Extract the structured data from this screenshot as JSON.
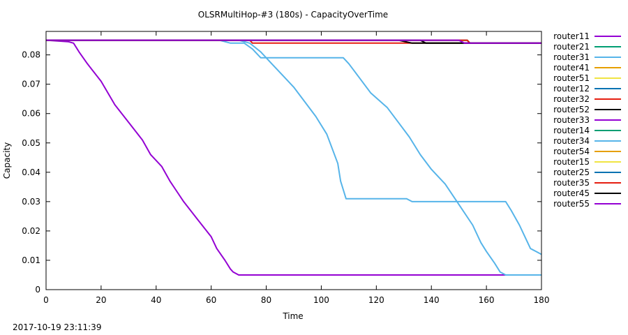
{
  "chart_data": {
    "type": "line",
    "title": "OLSRMultiHop-#3 (180s) - CapacityOverTime",
    "xlabel": "Time",
    "ylabel": "Capacity",
    "xlim": [
      0,
      180
    ],
    "ylim": [
      0,
      0.088
    ],
    "xticks": [
      0,
      20,
      40,
      60,
      80,
      100,
      120,
      140,
      160,
      180
    ],
    "yticks": [
      0,
      0.01,
      0.02,
      0.03,
      0.04,
      0.05,
      0.06,
      0.07,
      0.08
    ],
    "grid": false,
    "legend_position": "right",
    "series": [
      {
        "name": "router11",
        "color": "#9400d3",
        "points": [
          [
            0,
            0.085
          ],
          [
            8,
            0.0845
          ],
          [
            10,
            0.084
          ],
          [
            12,
            0.081
          ],
          [
            15,
            0.077
          ],
          [
            20,
            0.071
          ],
          [
            25,
            0.063
          ],
          [
            30,
            0.057
          ],
          [
            35,
            0.051
          ],
          [
            38,
            0.046
          ],
          [
            42,
            0.042
          ],
          [
            45,
            0.037
          ],
          [
            50,
            0.03
          ],
          [
            55,
            0.024
          ],
          [
            60,
            0.018
          ],
          [
            62,
            0.014
          ],
          [
            65,
            0.01
          ],
          [
            67,
            0.007
          ],
          [
            68,
            0.006
          ],
          [
            70,
            0.005
          ],
          [
            180,
            0.005
          ]
        ]
      },
      {
        "name": "router21",
        "color": "#009e73",
        "points": [
          [
            0,
            0.085
          ],
          [
            153,
            0.085
          ],
          [
            154,
            0.084
          ],
          [
            180,
            0.084
          ]
        ]
      },
      {
        "name": "router31",
        "color": "#56b4e9",
        "points": [
          [
            0,
            0.085
          ],
          [
            63,
            0.085
          ],
          [
            67,
            0.084
          ],
          [
            72,
            0.084
          ],
          [
            75,
            0.082
          ],
          [
            78,
            0.079
          ],
          [
            90,
            0.079
          ],
          [
            108,
            0.079
          ],
          [
            110,
            0.077
          ],
          [
            114,
            0.072
          ],
          [
            118,
            0.067
          ],
          [
            124,
            0.062
          ],
          [
            128,
            0.057
          ],
          [
            132,
            0.052
          ],
          [
            136,
            0.046
          ],
          [
            140,
            0.041
          ],
          [
            145,
            0.036
          ],
          [
            150,
            0.029
          ],
          [
            155,
            0.022
          ],
          [
            158,
            0.016
          ],
          [
            160,
            0.013
          ],
          [
            163,
            0.009
          ],
          [
            165,
            0.006
          ],
          [
            167,
            0.005
          ],
          [
            180,
            0.005
          ]
        ]
      },
      {
        "name": "router41",
        "color": "#e69f00",
        "points": [
          [
            0,
            0.085
          ],
          [
            153,
            0.085
          ],
          [
            154,
            0.084
          ],
          [
            180,
            0.084
          ]
        ]
      },
      {
        "name": "router51",
        "color": "#f0e442",
        "points": [
          [
            0,
            0.085
          ],
          [
            153,
            0.085
          ],
          [
            154,
            0.084
          ],
          [
            180,
            0.084
          ]
        ]
      },
      {
        "name": "router12",
        "color": "#0072b2",
        "points": [
          [
            0,
            0.085
          ],
          [
            153,
            0.085
          ],
          [
            154,
            0.084
          ],
          [
            180,
            0.084
          ]
        ]
      },
      {
        "name": "router32",
        "color": "#e51e10",
        "points": [
          [
            0,
            0.085
          ],
          [
            74,
            0.085
          ],
          [
            75,
            0.084
          ],
          [
            180,
            0.084
          ]
        ]
      },
      {
        "name": "router52",
        "color": "#000000",
        "points": [
          [
            0,
            0.085
          ],
          [
            128,
            0.085
          ],
          [
            133,
            0.084
          ],
          [
            180,
            0.084
          ]
        ]
      },
      {
        "name": "router33",
        "color": "#9400d3",
        "points": [
          [
            0,
            0.085
          ],
          [
            150,
            0.085
          ],
          [
            152,
            0.084
          ],
          [
            180,
            0.084
          ]
        ]
      },
      {
        "name": "router14",
        "color": "#009e73",
        "points": [
          [
            0,
            0.085
          ],
          [
            153,
            0.085
          ],
          [
            154,
            0.084
          ],
          [
            180,
            0.084
          ]
        ]
      },
      {
        "name": "router34",
        "color": "#56b4e9",
        "points": [
          [
            0,
            0.085
          ],
          [
            70,
            0.085
          ],
          [
            74,
            0.084
          ],
          [
            78,
            0.081
          ],
          [
            82,
            0.077
          ],
          [
            86,
            0.073
          ],
          [
            90,
            0.069
          ],
          [
            94,
            0.064
          ],
          [
            98,
            0.059
          ],
          [
            102,
            0.053
          ],
          [
            104,
            0.048
          ],
          [
            106,
            0.043
          ],
          [
            107,
            0.037
          ],
          [
            108,
            0.034
          ],
          [
            109,
            0.031
          ],
          [
            110,
            0.031
          ],
          [
            131,
            0.031
          ],
          [
            133,
            0.03
          ],
          [
            150,
            0.03
          ],
          [
            167,
            0.03
          ],
          [
            169,
            0.027
          ],
          [
            172,
            0.022
          ],
          [
            174,
            0.018
          ],
          [
            176,
            0.014
          ],
          [
            178,
            0.013
          ],
          [
            180,
            0.012
          ]
        ]
      },
      {
        "name": "router54",
        "color": "#e69f00",
        "points": [
          [
            0,
            0.085
          ],
          [
            153,
            0.085
          ],
          [
            154,
            0.084
          ],
          [
            180,
            0.084
          ]
        ]
      },
      {
        "name": "router15",
        "color": "#f0e442",
        "points": [
          [
            0,
            0.085
          ],
          [
            153,
            0.085
          ],
          [
            154,
            0.084
          ],
          [
            180,
            0.084
          ]
        ]
      },
      {
        "name": "router25",
        "color": "#0072b2",
        "points": [
          [
            0,
            0.085
          ],
          [
            153,
            0.085
          ],
          [
            154,
            0.084
          ],
          [
            180,
            0.084
          ]
        ]
      },
      {
        "name": "router35",
        "color": "#e51e10",
        "points": [
          [
            0,
            0.085
          ],
          [
            153,
            0.085
          ],
          [
            154,
            0.084
          ],
          [
            180,
            0.084
          ]
        ]
      },
      {
        "name": "router45",
        "color": "#000000",
        "points": [
          [
            0,
            0.085
          ],
          [
            136,
            0.085
          ],
          [
            138,
            0.084
          ],
          [
            180,
            0.084
          ]
        ]
      },
      {
        "name": "router55",
        "color": "#9400d3",
        "points": [
          [
            0,
            0.085
          ],
          [
            150,
            0.085
          ],
          [
            152,
            0.084
          ],
          [
            180,
            0.084
          ]
        ]
      }
    ]
  },
  "footer": {
    "timestamp": "2017-10-19 23:11:39"
  }
}
